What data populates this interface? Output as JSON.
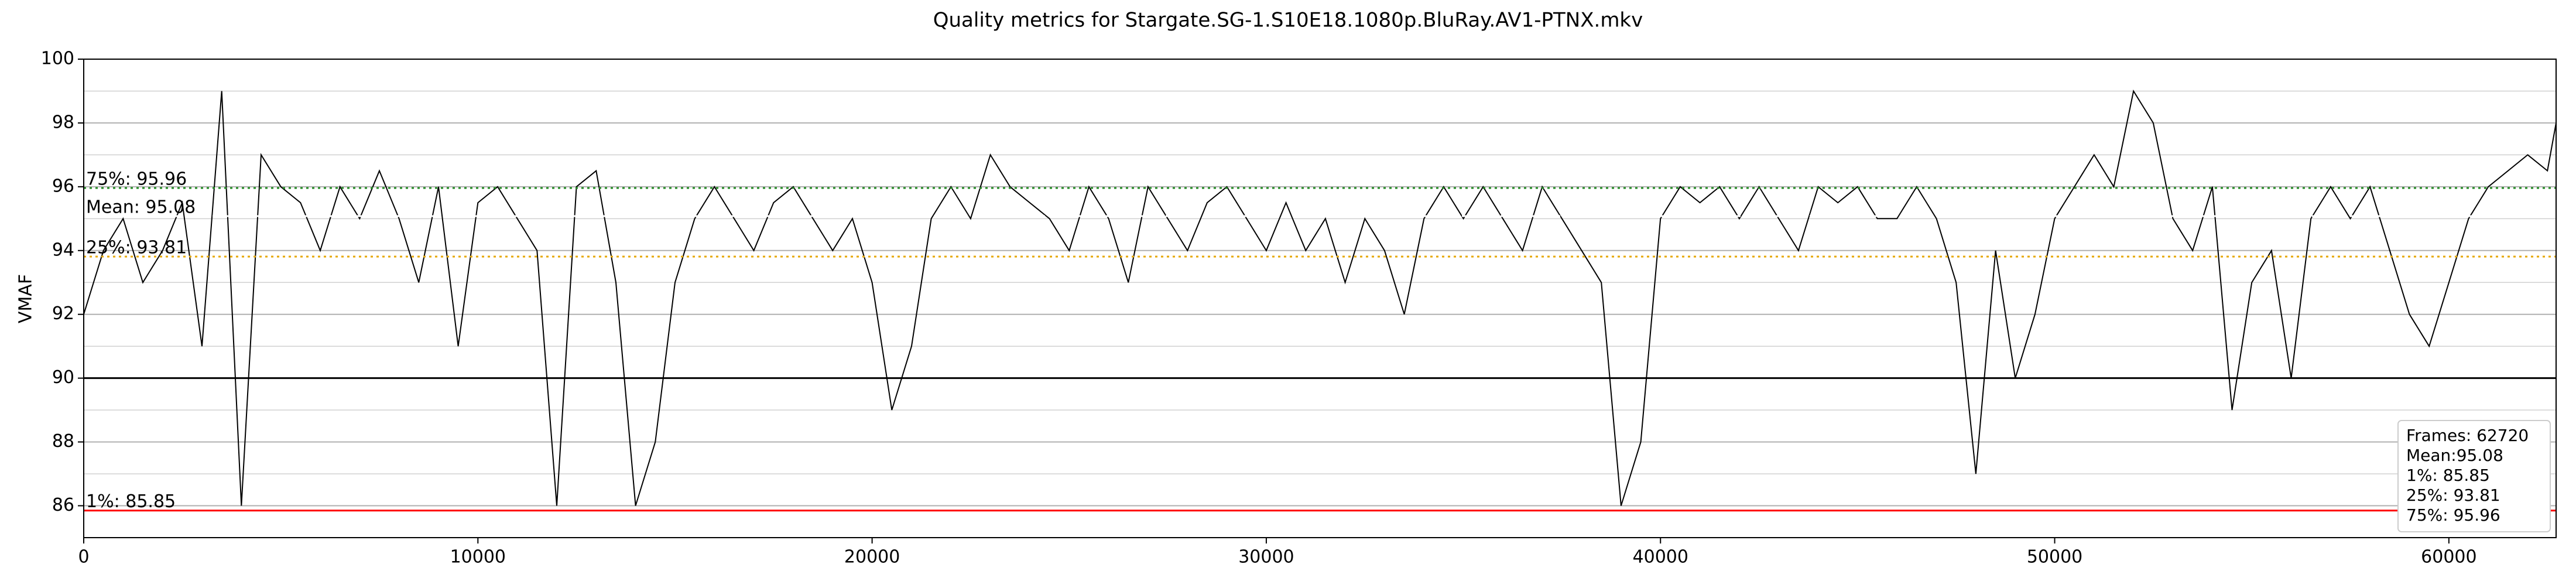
{
  "chart_data": {
    "type": "line",
    "title": "Quality metrics for Stargate.SG-1.S10E18.1080p.BluRay.AV1-PTNX.mkv",
    "ylabel": "VMAF",
    "xlim": [
      0,
      62720
    ],
    "xticks": [
      0,
      10000,
      20000,
      30000,
      40000,
      50000,
      60000
    ],
    "ylim": [
      85,
      100
    ],
    "yticks": [
      86,
      88,
      90,
      92,
      94,
      96,
      98,
      100
    ],
    "grid": true,
    "x": [
      0,
      500,
      1000,
      1500,
      2000,
      2500,
      3000,
      3500,
      4000,
      4500,
      5000,
      5500,
      6000,
      6500,
      7000,
      7500,
      8000,
      8500,
      9000,
      9500,
      10000,
      10500,
      11000,
      11500,
      12000,
      12500,
      13000,
      13500,
      14000,
      14500,
      15000,
      15500,
      16000,
      16500,
      17000,
      17500,
      18000,
      18500,
      19000,
      19500,
      20000,
      20500,
      21000,
      21500,
      22000,
      22500,
      23000,
      23500,
      24000,
      24500,
      25000,
      25500,
      26000,
      26500,
      27000,
      27500,
      28000,
      28500,
      29000,
      29500,
      30000,
      30500,
      31000,
      31500,
      32000,
      32500,
      33000,
      33500,
      34000,
      34500,
      35000,
      35500,
      36000,
      36500,
      37000,
      37500,
      38000,
      38500,
      39000,
      39500,
      40000,
      40500,
      41000,
      41500,
      42000,
      42500,
      43000,
      43500,
      44000,
      44500,
      45000,
      45500,
      46000,
      46500,
      47000,
      47500,
      48000,
      48500,
      49000,
      49500,
      50000,
      50500,
      51000,
      51500,
      52000,
      52500,
      53000,
      53500,
      54000,
      54500,
      55000,
      55500,
      56000,
      56500,
      57000,
      57500,
      58000,
      58500,
      59000,
      59500,
      60000,
      60500,
      61000,
      61500,
      62000,
      62500,
      62720
    ],
    "series": [
      {
        "color": "#000000",
        "values": [
          92,
          94,
          95,
          93,
          94,
          95.5,
          91,
          99,
          86,
          97,
          96,
          95.5,
          94,
          96,
          95,
          96.5,
          95,
          93,
          96,
          91,
          95.5,
          96,
          95,
          94,
          86,
          96,
          96.5,
          93,
          86,
          88,
          93,
          95,
          96,
          95,
          94,
          95.5,
          96,
          95,
          94,
          95,
          93,
          89,
          91,
          95,
          96,
          95,
          97,
          96,
          95.5,
          95,
          94,
          96,
          95,
          93,
          96,
          95,
          94,
          95.5,
          96,
          95,
          94,
          95.5,
          94,
          95,
          93,
          95,
          94,
          92,
          95,
          96,
          95,
          96,
          95,
          94,
          96,
          95,
          94,
          93,
          86,
          88,
          95,
          96,
          95.5,
          96,
          95,
          96,
          95,
          94,
          96,
          95.5,
          96,
          95,
          95,
          96,
          95,
          93,
          87,
          94,
          90,
          92,
          95,
          96,
          97,
          96,
          99,
          98,
          95,
          94,
          96,
          89,
          93,
          94,
          90,
          95,
          96,
          95,
          96,
          94,
          92,
          91,
          93,
          95,
          96,
          96.5,
          97,
          96.5,
          98
        ]
      }
    ],
    "hlines": [
      {
        "value": 95.96,
        "label": "75%: 95.96",
        "color": "#228b22",
        "style": "dotted"
      },
      {
        "value": 95.08,
        "label": "Mean: 95.08",
        "color": "#ffffff",
        "style": "dashed"
      },
      {
        "value": 93.81,
        "label": "25%: 93.81",
        "color": "#e6a800",
        "style": "dotted"
      },
      {
        "value": 90,
        "color": "#000000",
        "style": "solid"
      },
      {
        "value": 85.85,
        "label": "1%: 85.85",
        "color": "#ff0000",
        "style": "solid"
      }
    ],
    "legend_text": [
      "Frames: 62720",
      "Mean:95.08",
      "1%: 85.85",
      "25%: 93.81",
      "75%: 95.96"
    ]
  }
}
